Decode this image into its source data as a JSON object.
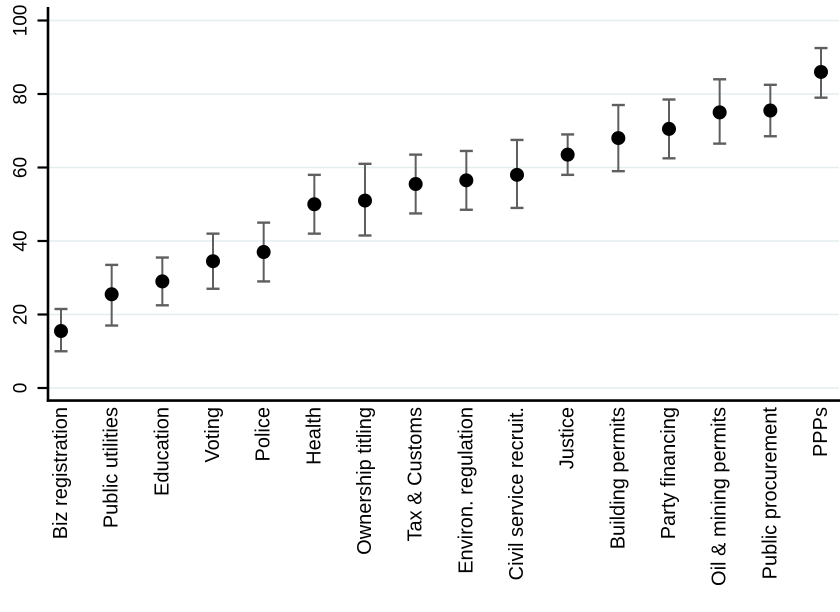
{
  "chart_data": {
    "type": "scatter",
    "subtype": "dot-plot-with-error-bars",
    "title": "",
    "xlabel": "",
    "ylabel": "",
    "ylim": [
      0,
      100
    ],
    "yticks": [
      0,
      20,
      40,
      60,
      80,
      100
    ],
    "grid": "horizontal-gridlines-on",
    "legend": "none",
    "categories": [
      "Biz registration",
      "Public utilities",
      "Education",
      "Voting",
      "Police",
      "Health",
      "Ownership titling",
      "Tax & Customs",
      "Environ. regulation",
      "Civil service recruit.",
      "Justice",
      "Building permits",
      "Party financing",
      "Oil & mining permits",
      "Public procurement",
      "PPPs"
    ],
    "series": [
      {
        "name": "point-estimate",
        "values": [
          15.5,
          25.5,
          29,
          34.5,
          37,
          50,
          51,
          55.5,
          56.5,
          58,
          63.5,
          68,
          70.5,
          75,
          75.5,
          86
        ],
        "ci_low": [
          10,
          17,
          22.5,
          27,
          29,
          42,
          41.5,
          47.5,
          48.5,
          49,
          58,
          59,
          62.5,
          66.5,
          68.5,
          79
        ],
        "ci_high": [
          21.5,
          33.5,
          35.5,
          42,
          45,
          58,
          61,
          63.5,
          64.5,
          67.5,
          69,
          77,
          78.5,
          84,
          82.5,
          92.5
        ]
      }
    ],
    "colors": {
      "dot": "#000000",
      "error_bar": "#5f5f5f",
      "grid": "#e4eeef",
      "axis": "#000000",
      "background": "#ffffff",
      "label_text": "#000000"
    }
  }
}
